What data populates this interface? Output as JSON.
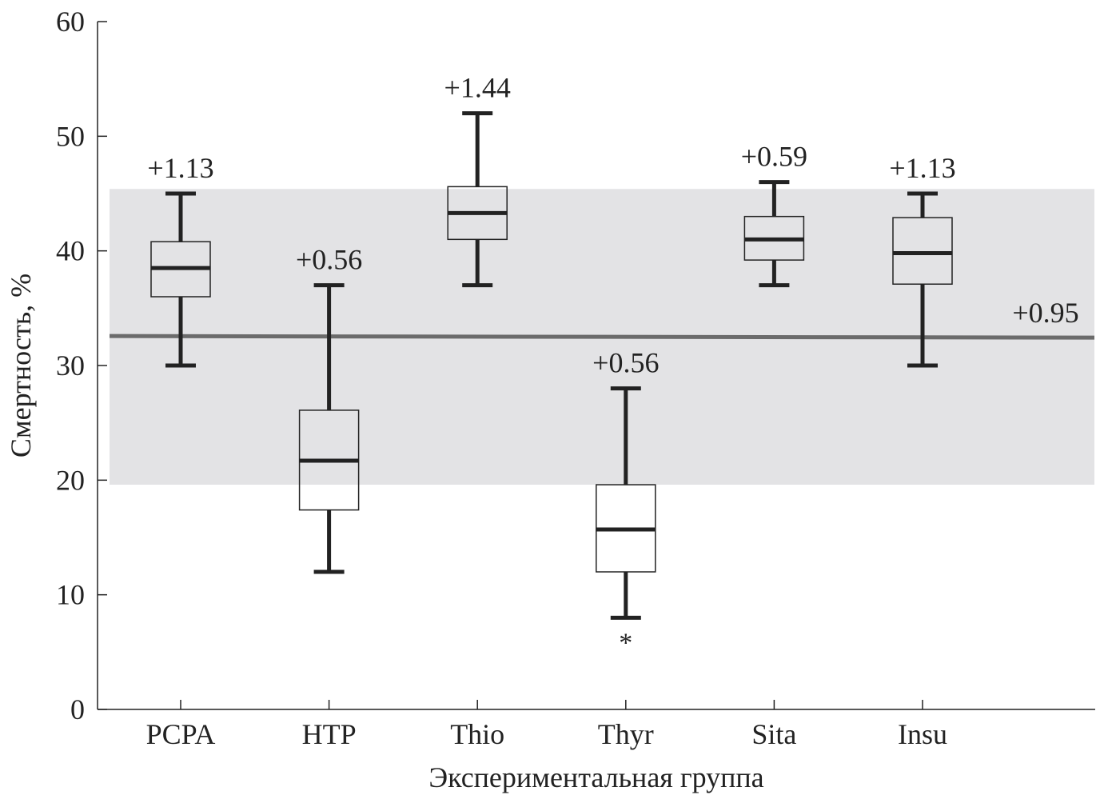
{
  "chart_data": {
    "type": "boxplot",
    "title": "",
    "xlabel": "Экспериментальная группа",
    "ylabel": "Смертность, %",
    "ylim": [
      0,
      60
    ],
    "yticks": [
      0,
      10,
      20,
      30,
      40,
      50,
      60
    ],
    "grid": false,
    "categories": [
      "PCPA",
      "HTP",
      "Thio",
      "Thyr",
      "Sita",
      "Insu"
    ],
    "boxes": [
      {
        "name": "PCPA",
        "min": 30,
        "q1": 36.0,
        "median": 38.5,
        "q3": 40.8,
        "max": 45,
        "label": "+1.13",
        "marker": ""
      },
      {
        "name": "HTP",
        "min": 12,
        "q1": 17.4,
        "median": 21.7,
        "q3": 26.1,
        "max": 37,
        "label": "+0.56",
        "marker": ""
      },
      {
        "name": "Thio",
        "min": 37,
        "q1": 41.0,
        "median": 43.3,
        "q3": 45.6,
        "max": 52,
        "label": "+1.44",
        "marker": ""
      },
      {
        "name": "Thyr",
        "min": 8,
        "q1": 12.0,
        "median": 15.7,
        "q3": 19.6,
        "max": 28,
        "label": "+0.56",
        "marker": "*"
      },
      {
        "name": "Sita",
        "min": 37,
        "q1": 39.2,
        "median": 41.0,
        "q3": 43.0,
        "max": 46,
        "label": "+0.59",
        "marker": ""
      },
      {
        "name": "Insu",
        "min": 30,
        "q1": 37.1,
        "median": 39.8,
        "q3": 42.9,
        "max": 45,
        "label": "+1.13",
        "marker": ""
      }
    ],
    "reference_line": {
      "value": 32.5,
      "label": "+0.95"
    },
    "reference_band": {
      "low": 19.6,
      "high": 45.4
    },
    "colors": {
      "band": "#e3e3e5",
      "line": "#6b6b6b",
      "box": "#222222",
      "axis": "#222222"
    }
  }
}
